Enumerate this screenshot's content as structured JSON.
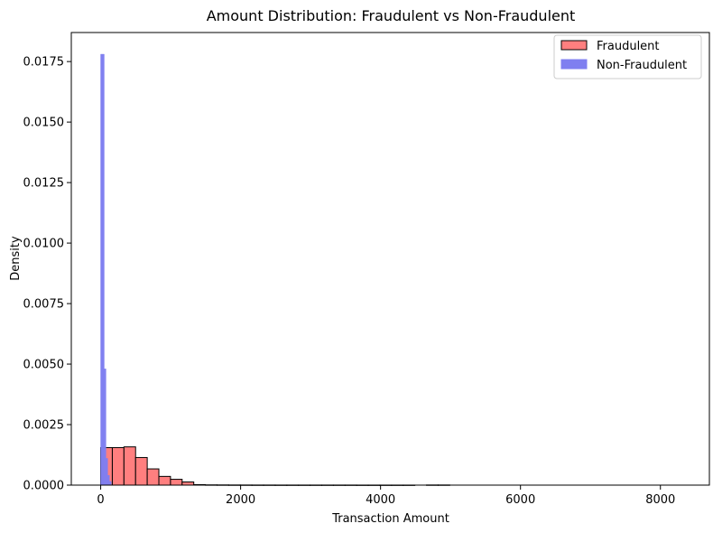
{
  "chart_data": {
    "type": "bar",
    "title": "Amount Distribution: Fraudulent vs Non-Fraudulent",
    "xlabel": "Transaction Amount",
    "ylabel": "Density",
    "xlim": [
      -420,
      8700
    ],
    "ylim": [
      0,
      0.0187
    ],
    "xticks": [
      0,
      2000,
      4000,
      6000,
      8000
    ],
    "yticks": [
      0.0,
      0.0025,
      0.005,
      0.0075,
      0.01,
      0.0125,
      0.015,
      0.0175
    ],
    "ytick_labels": [
      "0.0000",
      "0.0025",
      "0.0050",
      "0.0075",
      "0.0100",
      "0.0125",
      "0.0150",
      "0.0175"
    ],
    "legend_position": "top-right",
    "series": [
      {
        "name": "Fraudulent",
        "color": "#ff7f7f",
        "edge": "#000000",
        "bin_width": 166.3,
        "bin_start": 0,
        "densities": [
          0.00155,
          0.00155,
          0.00158,
          0.00114,
          0.00067,
          0.00036,
          0.00024,
          0.00013,
          2e-05,
          1e-05,
          8e-06,
          6e-06,
          5e-06,
          4e-06,
          4e-06,
          3e-06,
          3e-06,
          3e-06,
          3e-06,
          3e-06,
          3e-06,
          3e-06,
          2e-06,
          2e-06,
          2e-06,
          2e-06,
          2e-06,
          0.0,
          6e-06,
          6e-06
        ]
      },
      {
        "name": "Non-Fraudulent",
        "color": "#7f7ff0",
        "edge": "#7f7ff0",
        "bin_width": 12.5,
        "bin_start": 0,
        "densities": [
          0.0178,
          0.0178,
          0.0178,
          0.0178,
          0.0048,
          0.0048,
          0.0011,
          0.0011,
          0.0004,
          0.0004,
          0.00015,
          0.00015
        ]
      }
    ]
  }
}
